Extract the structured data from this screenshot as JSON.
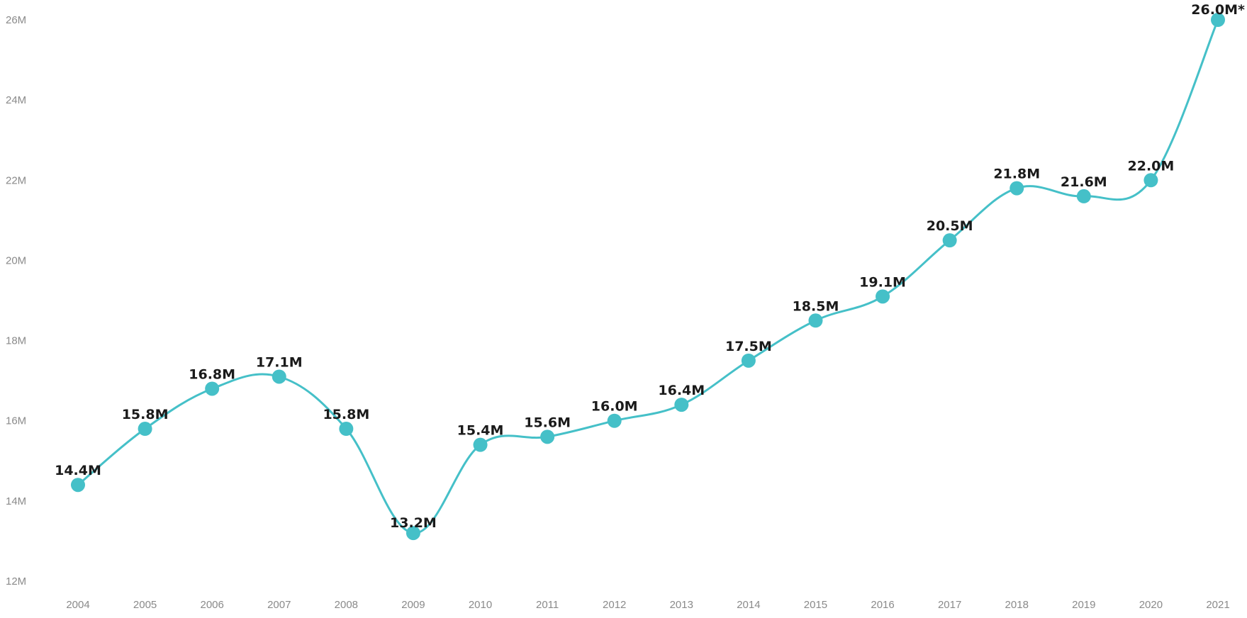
{
  "chart_data": {
    "type": "line",
    "title": "",
    "xlabel": "",
    "ylabel": "",
    "x": [
      "2004",
      "2005",
      "2006",
      "2007",
      "2008",
      "2009",
      "2010",
      "2011",
      "2012",
      "2013",
      "2014",
      "2015",
      "2016",
      "2017",
      "2018",
      "2019",
      "2020",
      "2021"
    ],
    "series": [
      {
        "values": [
          14.4,
          15.8,
          16.8,
          17.1,
          15.8,
          13.2,
          15.4,
          15.6,
          16.0,
          16.4,
          17.5,
          18.5,
          19.1,
          20.5,
          21.8,
          21.6,
          22.0,
          26.0
        ],
        "labels": [
          "14.4M",
          "15.8M",
          "16.8M",
          "17.1M",
          "15.8M",
          "13.2M",
          "15.4M",
          "15.6M",
          "16.0M",
          "16.4M",
          "17.5M",
          "18.5M",
          "19.1M",
          "20.5M",
          "21.8M",
          "21.6M",
          "22.0M",
          "26.0M*"
        ]
      }
    ],
    "ylim": [
      12,
      26
    ],
    "yticks": [
      {
        "value": 12,
        "label": "12M"
      },
      {
        "value": 14,
        "label": "14M"
      },
      {
        "value": 16,
        "label": "16M"
      },
      {
        "value": 18,
        "label": "18M"
      },
      {
        "value": 20,
        "label": "20M"
      },
      {
        "value": 22,
        "label": "22M"
      },
      {
        "value": 24,
        "label": "24M"
      },
      {
        "value": 26,
        "label": "26M"
      }
    ],
    "grid": false,
    "legend": "none",
    "line_color": "#45c0c8",
    "marker_color": "#45c0c8",
    "label_color": "#1a1a1a",
    "tick_color": "#8a8a8a"
  }
}
